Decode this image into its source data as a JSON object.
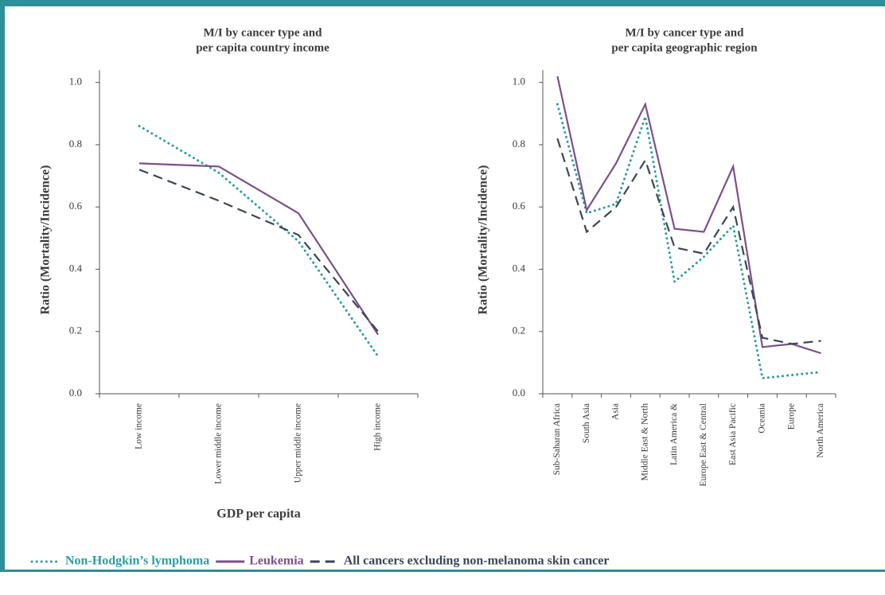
{
  "chart_data": [
    {
      "type": "line",
      "title": [
        "M/I by cancer type and",
        "per capita country income"
      ],
      "y_label": "Ratio (Mortality/Incidence)",
      "x_label": "GDP per capita",
      "categories": [
        "Low income",
        "Lower middle income",
        "Upper middle income",
        "High income"
      ],
      "ylim": [
        0,
        1.04
      ],
      "yticks": [
        {
          "value": 0,
          "label": "0.0"
        },
        0.2,
        0.4,
        0.6,
        0.8,
        {
          "value": 1,
          "label": "1.0"
        }
      ],
      "series": [
        {
          "name": "Non-Hodgkin’s lymphoma",
          "color": "#2a9ea0",
          "dash": "dotted",
          "values": [
            0.86,
            0.71,
            0.49,
            0.12
          ]
        },
        {
          "name": "Leukemia",
          "color": "#7b4f8c",
          "dash": "solid",
          "values": [
            0.74,
            0.73,
            0.58,
            0.19
          ]
        },
        {
          "name": "All cancers excluding non-melanoma skin cancer",
          "color": "#3b4656",
          "dash": "dashed",
          "values": [
            0.72,
            0.62,
            0.51,
            0.2
          ]
        }
      ]
    },
    {
      "type": "line",
      "title": [
        "M/I by cancer type and",
        "per capita geographic region"
      ],
      "y_label": "Ratio (Mortality/Incidence)",
      "categories": [
        "Sub-Saharan Africa",
        "South Asia",
        "Asia",
        "Middle East & North",
        "Latin America &",
        "Europe East & Central",
        "East Asia Pacific",
        "Oceania",
        "Europe",
        "North America"
      ],
      "ylim": [
        0,
        1.04
      ],
      "yticks": [
        {
          "value": 0,
          "label": "0.0"
        },
        0.2,
        0.4,
        0.6,
        0.8,
        {
          "value": 1,
          "label": "1.0"
        }
      ],
      "series": [
        {
          "color": "#2a9ea0",
          "dash": "dotted",
          "values": [
            0.93,
            0.58,
            0.61,
            0.89,
            0.36,
            0.44,
            0.54,
            0.05,
            0.06,
            0.07
          ]
        },
        {
          "color": "#7b4f8c",
          "dash": "solid",
          "values": [
            1.02,
            0.59,
            0.74,
            0.93,
            0.53,
            0.52,
            0.73,
            0.15,
            0.16,
            0.13
          ]
        },
        {
          "color": "#3b4656",
          "dash": "dashed",
          "values": [
            0.82,
            0.52,
            0.6,
            0.75,
            0.47,
            0.45,
            0.6,
            0.18,
            0.16,
            0.17
          ]
        }
      ]
    }
  ]
}
